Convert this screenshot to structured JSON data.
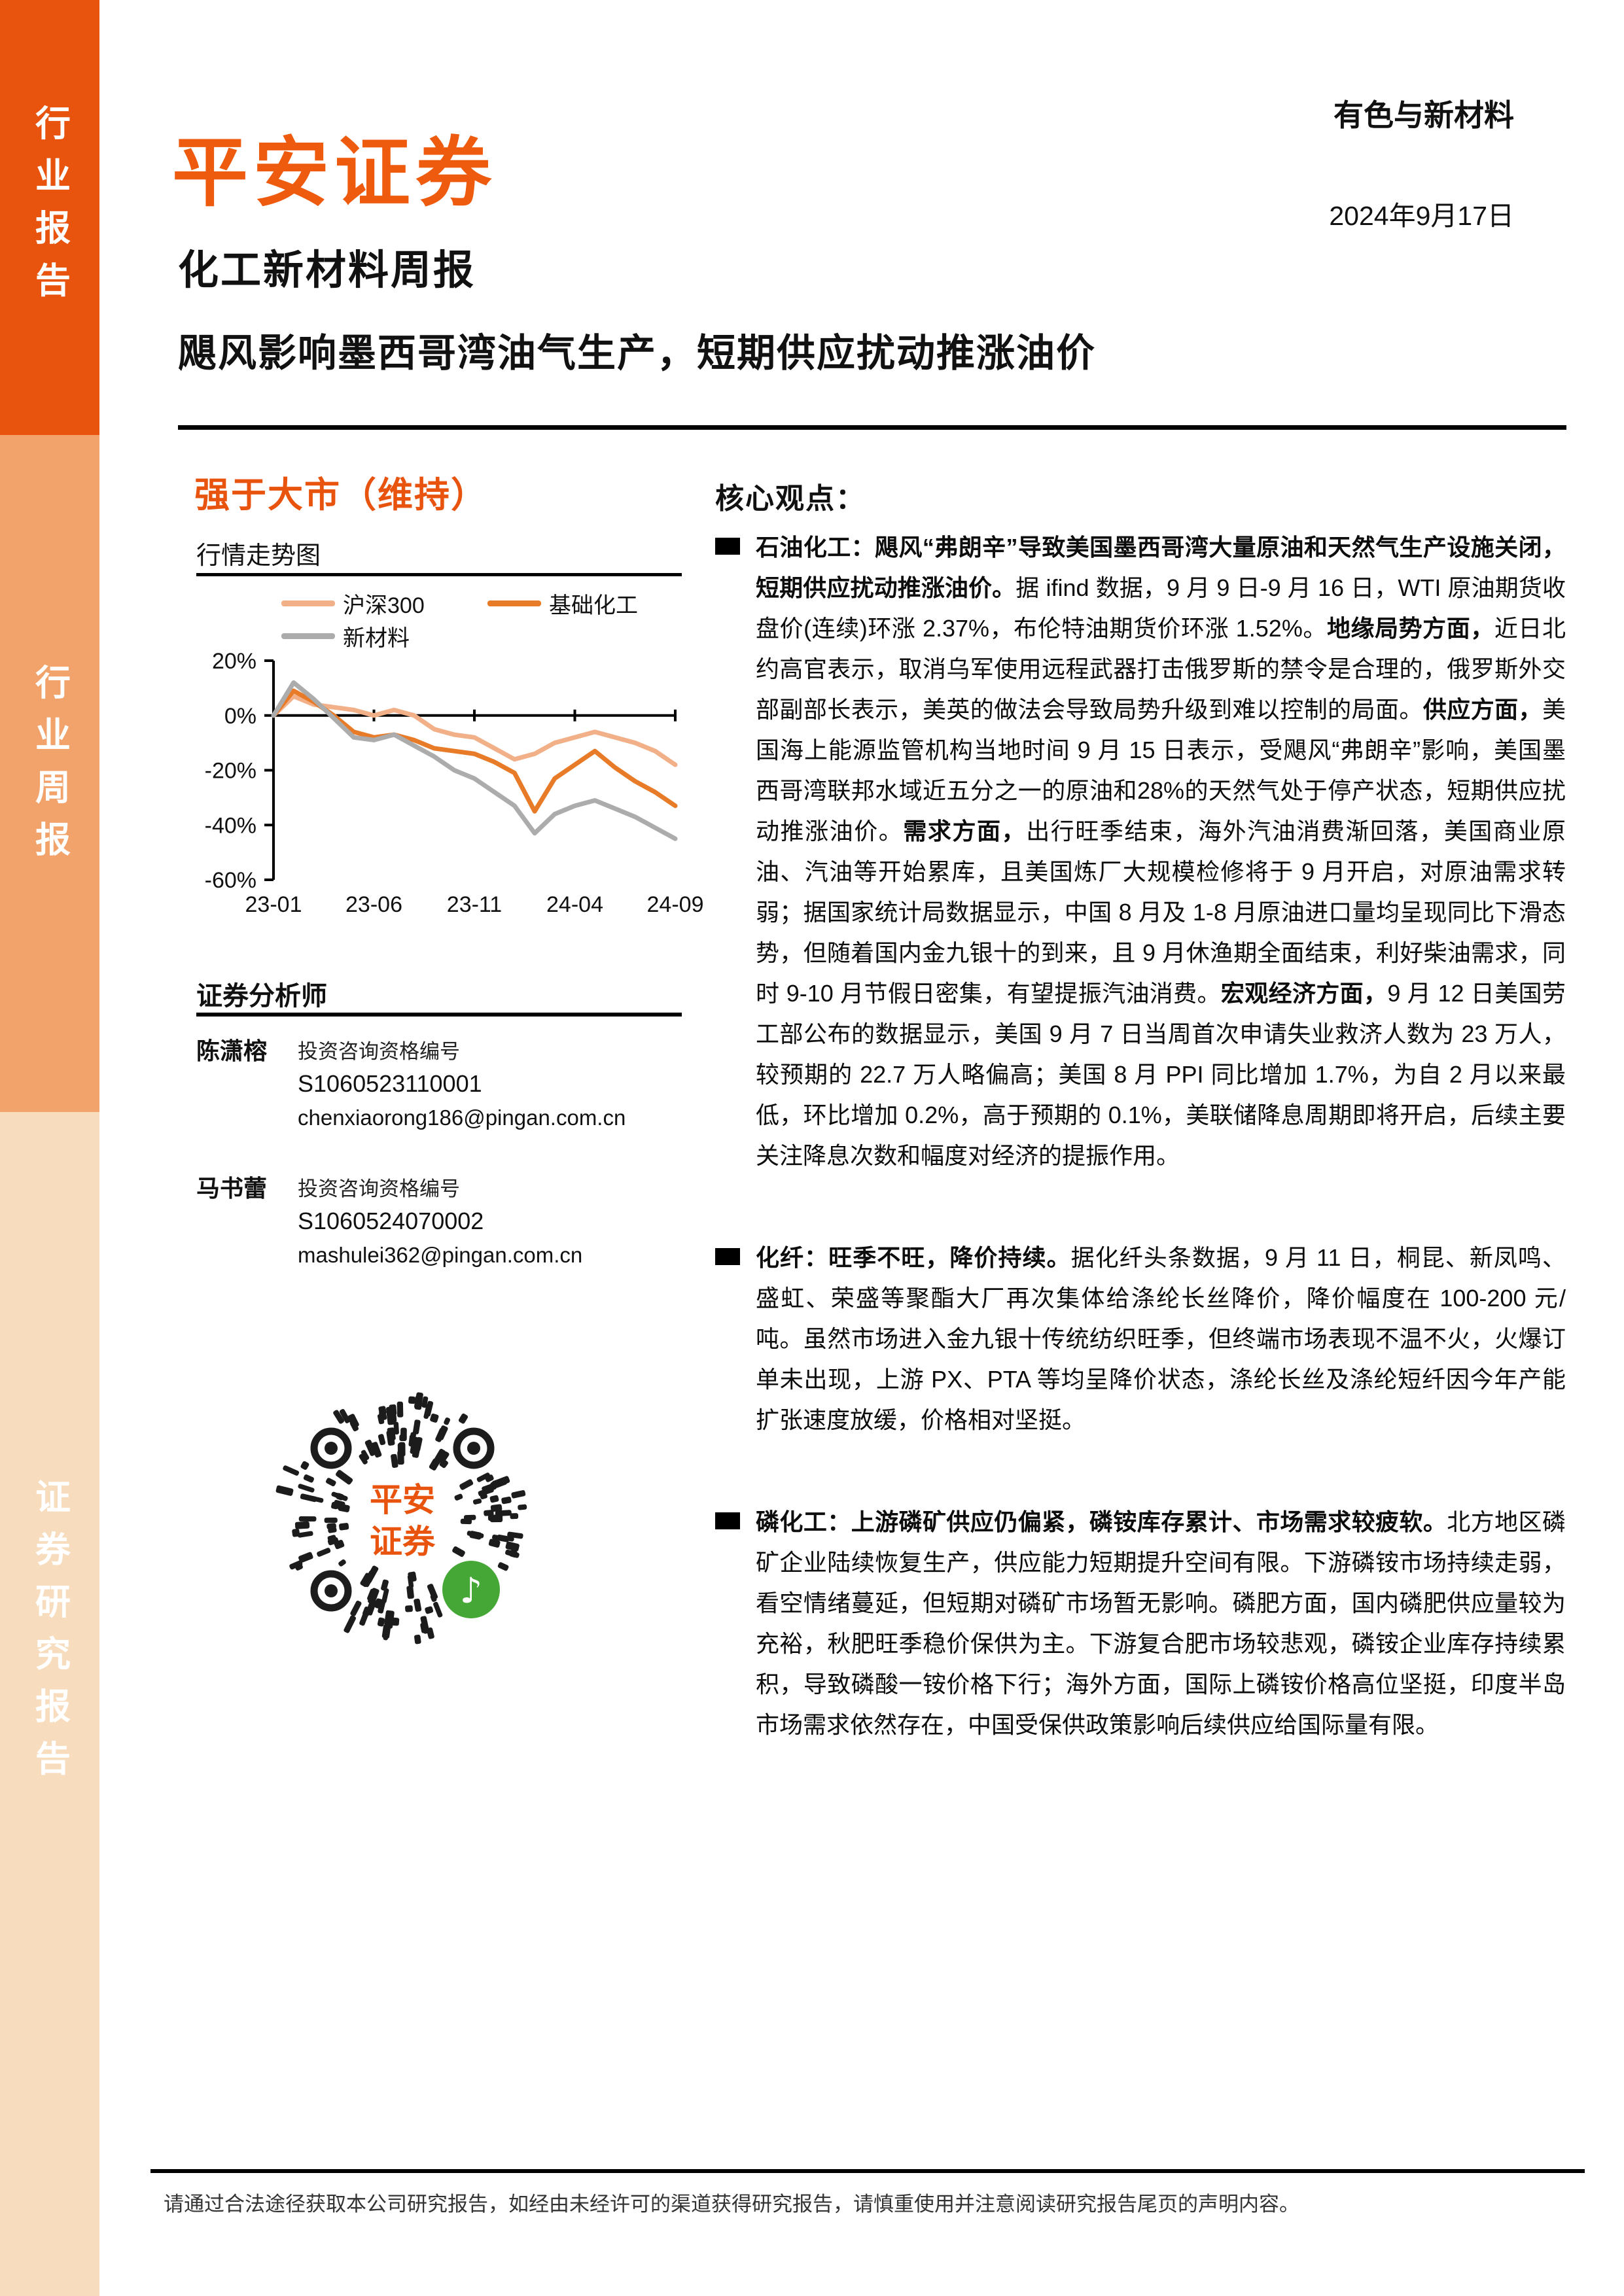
{
  "sidebar": {
    "top_label": "行业报告",
    "middle_label": "行业周报",
    "bottom_label": "证券研究报告"
  },
  "header": {
    "logo": "平安证券",
    "industry": "有色与新材料",
    "date": "2024年9月17日",
    "report_type": "化工新材料周报",
    "title": "飓风影响墨西哥湾油气生产，短期供应扰动推涨油价"
  },
  "rating": {
    "label": "强于大市（维持）"
  },
  "chart_section": {
    "heading": "行情走势图"
  },
  "chart_data": {
    "type": "line",
    "title": "行情走势图",
    "x": [
      "23-01",
      "23-02",
      "23-03",
      "23-04",
      "23-05",
      "23-06",
      "23-07",
      "23-08",
      "23-09",
      "23-10",
      "23-11",
      "23-12",
      "24-01",
      "24-02",
      "24-03",
      "24-04",
      "24-05",
      "24-06",
      "24-07",
      "24-08",
      "24-09"
    ],
    "xticks": [
      "23-01",
      "23-06",
      "23-11",
      "24-04",
      "24-09"
    ],
    "xtick_idx": [
      0,
      5,
      10,
      15,
      20
    ],
    "yticks": [
      "20%",
      "0%",
      "-20%",
      "-40%",
      "-60%"
    ],
    "ytick_vals": [
      20,
      0,
      -20,
      -40,
      -60
    ],
    "ylim": [
      -60,
      20
    ],
    "grid": false,
    "legend_position": "top",
    "series": [
      {
        "name": "沪深300",
        "color": "#F2B088",
        "values": [
          0,
          7,
          4,
          3,
          2,
          0,
          2,
          0,
          -5,
          -7,
          -8,
          -12,
          -16,
          -14,
          -10,
          -8,
          -6,
          -8,
          -10,
          -13,
          -18
        ]
      },
      {
        "name": "基础化工",
        "color": "#E87B28",
        "values": [
          0,
          9,
          5,
          0,
          -6,
          -8,
          -7,
          -9,
          -12,
          -13,
          -14,
          -17,
          -21,
          -35,
          -23,
          -18,
          -13,
          -19,
          -24,
          -28,
          -33
        ]
      },
      {
        "name": "新材料",
        "color": "#ACACAC",
        "values": [
          0,
          12,
          6,
          -1,
          -8,
          -9,
          -7,
          -11,
          -15,
          -20,
          -23,
          -28,
          -33,
          -43,
          -36,
          -33,
          -31,
          -34,
          -37,
          -41,
          -45
        ]
      }
    ]
  },
  "analysts": {
    "heading": "证券分析师",
    "list": [
      {
        "name": "陈潇榕",
        "cert_label": "投资咨询资格编号",
        "cert_no": "S1060523110001",
        "email": "chenxiaorong186@pingan.com.cn"
      },
      {
        "name": "马书蕾",
        "cert_label": "投资咨询资格编号",
        "cert_no": "S1060524070002",
        "email": "mashulei362@pingan.com.cn"
      }
    ]
  },
  "qr": {
    "center_line1": "平安",
    "center_line2": "证券",
    "accent": "#E8530E",
    "icon_green": "#45A735",
    "icon": "wechat-channels-icon"
  },
  "core": {
    "heading": "核心观点：",
    "bullets": [
      {
        "runs": [
          {
            "bold": true,
            "text": "石油化工：飓风“弗朗辛”导致美国墨西哥湾大量原油和天然气生产设施关闭，短期供应扰动推涨油价。"
          },
          {
            "bold": false,
            "text": "据 ifind 数据，9 月 9 日-9 月 16 日，WTI 原油期货收盘价(连续)环涨 2.37%，布伦特油期货价环涨 1.52%。"
          },
          {
            "bold": true,
            "text": "地缘局势方面，"
          },
          {
            "bold": false,
            "text": "近日北约高官表示，取消乌军使用远程武器打击俄罗斯的禁令是合理的，俄罗斯外交部副部长表示，美英的做法会导致局势升级到难以控制的局面。"
          },
          {
            "bold": true,
            "text": "供应方面，"
          },
          {
            "bold": false,
            "text": "美国海上能源监管机构当地时间 9 月 15 日表示，受飓风“弗朗辛”影响，美国墨西哥湾联邦水域近五分之一的原油和28%的天然气处于停产状态，短期供应扰动推涨油价。"
          },
          {
            "bold": true,
            "text": "需求方面，"
          },
          {
            "bold": false,
            "text": "出行旺季结束，海外汽油消费渐回落，美国商业原油、汽油等开始累库，且美国炼厂大规模检修将于 9 月开启，对原油需求转弱；据国家统计局数据显示，中国 8 月及 1-8 月原油进口量均呈现同比下滑态势，但随着国内金九银十的到来，且 9 月休渔期全面结束，利好柴油需求，同时 9-10 月节假日密集，有望提振汽油消费。"
          },
          {
            "bold": true,
            "text": "宏观经济方面，"
          },
          {
            "bold": false,
            "text": "9 月 12 日美国劳工部公布的数据显示，美国 9 月 7 日当周首次申请失业救济人数为 23 万人，较预期的 22.7 万人略偏高；美国 8 月 PPI 同比增加 1.7%，为自 2 月以来最低，环比增加 0.2%，高于预期的 0.1%，美联储降息周期即将开启，后续主要关注降息次数和幅度对经济的提振作用。"
          }
        ]
      },
      {
        "runs": [
          {
            "bold": true,
            "text": "化纤：旺季不旺，降价持续。"
          },
          {
            "bold": false,
            "text": "据化纤头条数据，9 月 11 日，桐昆、新凤鸣、盛虹、荣盛等聚酯大厂再次集体给涤纶长丝降价，降价幅度在 100-200 元/吨。虽然市场进入金九银十传统纺织旺季，但终端市场表现不温不火，火爆订单未出现，上游 PX、PTA 等均呈降价状态，涤纶长丝及涤纶短纤因今年产能扩张速度放缓，价格相对坚挺。"
          }
        ]
      },
      {
        "runs": [
          {
            "bold": true,
            "text": "磷化工：上游磷矿供应仍偏紧，磷铵库存累计、市场需求较疲软。"
          },
          {
            "bold": false,
            "text": "北方地区磷矿企业陆续恢复生产，供应能力短期提升空间有限。下游磷铵市场持续走弱，看空情绪蔓延，但短期对磷矿市场暂无影响。磷肥方面，国内磷肥供应量较为充裕，秋肥旺季稳价保供为主。下游复合肥市场较悲观，磷铵企业库存持续累积，导致磷酸一铵价格下行；海外方面，国际上磷铵价格高位坚挺，印度半岛市场需求依然存在，中国受保供政策影响后续供应给国际量有限。"
          }
        ]
      }
    ]
  },
  "footer": {
    "disclaimer": "请通过合法途径获取本公司研究报告，如经由未经许可的渠道获得研究报告，请慎重使用并注意阅读研究报告尾页的声明内容。"
  }
}
